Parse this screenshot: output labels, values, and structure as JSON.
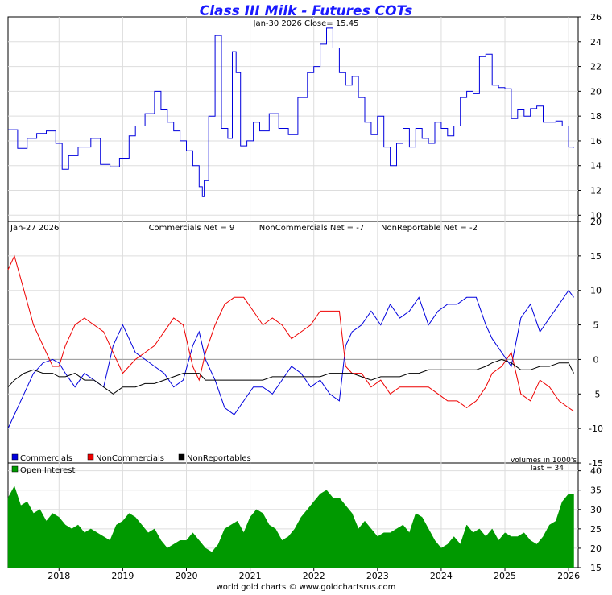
{
  "header": {
    "title": "Class III Milk - Futures COTs",
    "price_stamp": "Jan-30  2026   Close= 15.45",
    "cot_stamp": "Jan-27  2026",
    "commercials_net": "Commercials Net = 9",
    "noncommercials_net": "NonCommercials Net = -7",
    "nonreportable_net": "NonReportable Net = -2",
    "volumes_note": "volumes in 1000's",
    "last_note": "last = 34",
    "footer": "world gold charts © www.goldchartsrus.com"
  },
  "legend": {
    "commercials": "Commercials",
    "noncommercials": "NonCommercials",
    "nonreportables": "NonReportables",
    "open_interest": "Open Interest"
  },
  "colors": {
    "price": "#0000dd",
    "commercials": "#0000dd",
    "noncommercials": "#ee0000",
    "nonreportables": "#000000",
    "open_interest": "#009900",
    "grid": "#dddddd"
  },
  "chart_data": [
    {
      "type": "line",
      "name": "price",
      "title": "Class III Milk - Futures COTs",
      "x_range": [
        2017.2,
        2026.15
      ],
      "ylim": [
        9.5,
        26
      ],
      "y_ticks": [
        10,
        12,
        14,
        16,
        18,
        20,
        22,
        24,
        26
      ],
      "grid": true,
      "x": [
        2017.2,
        2017.35,
        2017.5,
        2017.65,
        2017.8,
        2017.95,
        2018.05,
        2018.15,
        2018.3,
        2018.5,
        2018.65,
        2018.8,
        2018.95,
        2019.1,
        2019.2,
        2019.35,
        2019.5,
        2019.6,
        2019.7,
        2019.8,
        2019.9,
        2020.0,
        2020.1,
        2020.2,
        2020.25,
        2020.28,
        2020.35,
        2020.45,
        2020.55,
        2020.65,
        2020.72,
        2020.78,
        2020.85,
        2020.95,
        2021.05,
        2021.15,
        2021.3,
        2021.45,
        2021.6,
        2021.75,
        2021.9,
        2022.0,
        2022.1,
        2022.2,
        2022.3,
        2022.4,
        2022.5,
        2022.6,
        2022.7,
        2022.8,
        2022.9,
        2023.0,
        2023.1,
        2023.2,
        2023.3,
        2023.4,
        2023.5,
        2023.6,
        2023.7,
        2023.8,
        2023.9,
        2024.0,
        2024.1,
        2024.2,
        2024.3,
        2024.4,
        2024.5,
        2024.6,
        2024.7,
        2024.8,
        2024.9,
        2025.0,
        2025.1,
        2025.2,
        2025.3,
        2025.4,
        2025.5,
        2025.6,
        2025.7,
        2025.8,
        2025.9,
        2026.0,
        2026.08
      ],
      "y": [
        16.9,
        15.4,
        16.2,
        16.6,
        16.8,
        15.8,
        13.7,
        14.8,
        15.5,
        16.2,
        14.1,
        13.9,
        14.6,
        16.4,
        17.2,
        18.2,
        20.0,
        18.5,
        17.5,
        16.8,
        16.0,
        15.2,
        14.0,
        12.3,
        11.5,
        12.8,
        18.0,
        24.5,
        17.0,
        16.2,
        23.2,
        21.5,
        15.6,
        16.0,
        17.5,
        16.8,
        18.2,
        17.0,
        16.5,
        19.5,
        21.5,
        22.0,
        23.8,
        25.1,
        23.5,
        21.5,
        20.5,
        21.2,
        19.5,
        17.5,
        16.5,
        18.0,
        15.5,
        14.0,
        15.8,
        17.0,
        15.5,
        17.0,
        16.2,
        15.8,
        17.5,
        17.0,
        16.4,
        17.2,
        19.5,
        20.0,
        19.8,
        22.8,
        23.0,
        20.5,
        20.3,
        20.2,
        17.8,
        18.5,
        18.0,
        18.6,
        18.8,
        17.5,
        17.5,
        17.6,
        17.2,
        15.5,
        15.45
      ]
    },
    {
      "type": "line",
      "name": "cot_net",
      "x_range": [
        2017.2,
        2026.15
      ],
      "ylim": [
        -15,
        20
      ],
      "y_ticks": [
        -15,
        -10,
        -5,
        0,
        5,
        10,
        15,
        20
      ],
      "grid": true,
      "x": [
        2017.2,
        2017.3,
        2017.45,
        2017.6,
        2017.75,
        2017.9,
        2018.0,
        2018.1,
        2018.25,
        2018.4,
        2018.55,
        2018.7,
        2018.85,
        2019.0,
        2019.1,
        2019.2,
        2019.35,
        2019.5,
        2019.65,
        2019.8,
        2019.95,
        2020.1,
        2020.2,
        2020.3,
        2020.45,
        2020.6,
        2020.75,
        2020.9,
        2021.05,
        2021.2,
        2021.35,
        2021.5,
        2021.65,
        2021.8,
        2021.95,
        2022.1,
        2022.25,
        2022.4,
        2022.5,
        2022.6,
        2022.75,
        2022.9,
        2023.05,
        2023.2,
        2023.35,
        2023.5,
        2023.65,
        2023.8,
        2023.95,
        2024.1,
        2024.25,
        2024.4,
        2024.55,
        2024.7,
        2024.8,
        2024.95,
        2025.1,
        2025.25,
        2025.4,
        2025.55,
        2025.7,
        2025.85,
        2026.0,
        2026.08
      ],
      "series": [
        {
          "name": "Commercials",
          "values": [
            -10,
            -8,
            -5,
            -2,
            -0.5,
            0,
            -0.5,
            -2,
            -4,
            -2,
            -3,
            -4,
            2,
            5,
            3,
            1,
            0,
            -1,
            -2,
            -4,
            -3,
            2,
            4,
            0,
            -3,
            -7,
            -8,
            -6,
            -4,
            -4,
            -5,
            -3,
            -1,
            -2,
            -4,
            -3,
            -5,
            -6,
            2,
            4,
            5,
            7,
            5,
            8,
            6,
            7,
            9,
            5,
            7,
            8,
            8,
            9,
            9,
            5,
            3,
            1,
            -1,
            6,
            8,
            4,
            6,
            8,
            10,
            9
          ]
        },
        {
          "name": "NonCommercials",
          "values": [
            13,
            15,
            10,
            5,
            2,
            -1,
            -1,
            2,
            5,
            6,
            5,
            4,
            1,
            -2,
            -1,
            0,
            1,
            2,
            4,
            6,
            5,
            -1,
            -3,
            1,
            5,
            8,
            9,
            9,
            7,
            5,
            6,
            5,
            3,
            4,
            5,
            7,
            7,
            7,
            -1,
            -2,
            -2,
            -4,
            -3,
            -5,
            -4,
            -4,
            -4,
            -4,
            -5,
            -6,
            -6,
            -7,
            -6,
            -4,
            -2,
            -1,
            1,
            -5,
            -6,
            -3,
            -4,
            -6,
            -7,
            -7.5
          ]
        },
        {
          "name": "NonReportables",
          "values": [
            -4,
            -3,
            -2,
            -1.5,
            -2,
            -2,
            -2.5,
            -2.5,
            -2,
            -3,
            -3,
            -4,
            -5,
            -4,
            -4,
            -4,
            -3.5,
            -3.5,
            -3,
            -2.5,
            -2,
            -2,
            -2,
            -3,
            -3,
            -3,
            -3,
            -3,
            -3,
            -3,
            -2.5,
            -2.5,
            -2.5,
            -2.5,
            -2.5,
            -2.5,
            -2,
            -2,
            -2,
            -2,
            -2.5,
            -3,
            -2.5,
            -2.5,
            -2.5,
            -2,
            -2,
            -1.5,
            -1.5,
            -1.5,
            -1.5,
            -1.5,
            -1.5,
            -1,
            -0.5,
            0,
            -0.5,
            -1.5,
            -1.5,
            -1,
            -1,
            -0.5,
            -0.5,
            -2
          ]
        }
      ]
    },
    {
      "type": "area",
      "name": "open_interest",
      "x_range": [
        2017.2,
        2026.15
      ],
      "ylim": [
        15,
        42
      ],
      "y_ticks": [
        15,
        20,
        25,
        30,
        35,
        40
      ],
      "x_ticks": [
        "2018",
        "2019",
        "2020",
        "2021",
        "2022",
        "2023",
        "2024",
        "2025",
        "2026"
      ],
      "x_tick_values": [
        2018,
        2019,
        2020,
        2021,
        2022,
        2023,
        2024,
        2025,
        2026
      ],
      "grid": true,
      "x": [
        2017.2,
        2017.3,
        2017.4,
        2017.5,
        2017.6,
        2017.7,
        2017.8,
        2017.9,
        2018.0,
        2018.1,
        2018.2,
        2018.3,
        2018.4,
        2018.5,
        2018.6,
        2018.7,
        2018.8,
        2018.9,
        2019.0,
        2019.1,
        2019.2,
        2019.3,
        2019.4,
        2019.5,
        2019.6,
        2019.7,
        2019.8,
        2019.9,
        2020.0,
        2020.1,
        2020.2,
        2020.3,
        2020.4,
        2020.5,
        2020.6,
        2020.7,
        2020.8,
        2020.9,
        2021.0,
        2021.1,
        2021.2,
        2021.3,
        2021.4,
        2021.5,
        2021.6,
        2021.7,
        2021.8,
        2021.9,
        2022.0,
        2022.1,
        2022.2,
        2022.3,
        2022.4,
        2022.5,
        2022.6,
        2022.7,
        2022.8,
        2022.9,
        2023.0,
        2023.1,
        2023.2,
        2023.3,
        2023.4,
        2023.5,
        2023.6,
        2023.7,
        2023.8,
        2023.9,
        2024.0,
        2024.1,
        2024.2,
        2024.3,
        2024.4,
        2024.5,
        2024.6,
        2024.7,
        2024.8,
        2024.9,
        2025.0,
        2025.1,
        2025.2,
        2025.3,
        2025.4,
        2025.5,
        2025.6,
        2025.7,
        2025.8,
        2025.9,
        2026.0,
        2026.08
      ],
      "y": [
        33,
        36,
        31,
        32,
        29,
        30,
        27,
        29,
        28,
        26,
        25,
        26,
        24,
        25,
        24,
        23,
        22,
        26,
        27,
        29,
        28,
        26,
        24,
        25,
        22,
        20,
        21,
        22,
        22,
        24,
        22,
        20,
        19,
        21,
        25,
        26,
        27,
        24,
        28,
        30,
        29,
        26,
        25,
        22,
        23,
        25,
        28,
        30,
        32,
        34,
        35,
        33,
        33,
        31,
        29,
        25,
        27,
        25,
        23,
        24,
        24,
        25,
        26,
        24,
        29,
        28,
        25,
        22,
        20,
        21,
        23,
        21,
        26,
        24,
        25,
        23,
        25,
        22,
        24,
        23,
        23,
        24,
        22,
        21,
        23,
        26,
        27,
        32,
        34,
        34
      ]
    }
  ]
}
